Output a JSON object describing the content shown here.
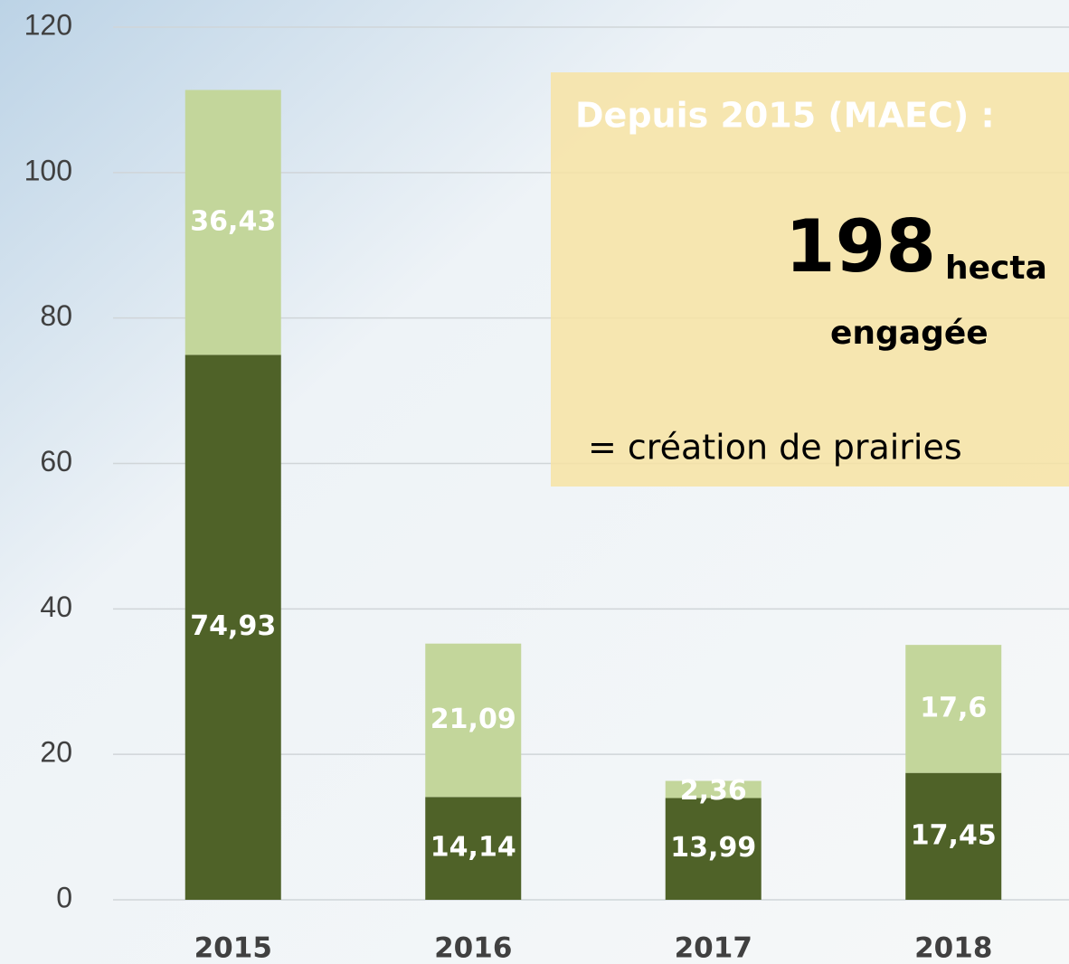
{
  "chart_data": {
    "type": "stacked_bar",
    "categories": [
      "2015",
      "2016",
      "2017",
      "2018"
    ],
    "series": [
      {
        "color": "#4f6228",
        "values": [
          74.93,
          14.14,
          13.99,
          17.45
        ],
        "value_labels": [
          "74,93",
          "14,14",
          "13,99",
          "17,45"
        ]
      },
      {
        "color": "#c3d69b",
        "values": [
          36.43,
          21.09,
          2.36,
          17.6
        ],
        "value_labels": [
          "36,43",
          "21,09",
          "2,36",
          "17,6"
        ]
      }
    ],
    "ylim": [
      0,
      120
    ],
    "yticks": [
      0,
      20,
      40,
      60,
      80,
      100,
      120
    ],
    "grid": true,
    "annotation": {
      "heading": "Depuis 2015 (MAEC) :",
      "number": "198",
      "unit": "hecta",
      "line2": "engagée",
      "line3": "= création de prairies",
      "color": "#f7e3a3"
    }
  }
}
